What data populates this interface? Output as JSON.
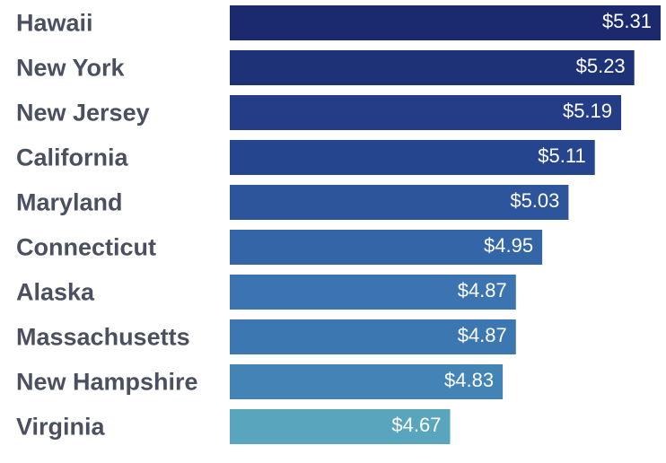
{
  "chart_data": {
    "type": "bar",
    "orientation": "horizontal",
    "categories": [
      "Hawaii",
      "New York",
      "New Jersey",
      "California",
      "Maryland",
      "Connecticut",
      "Alaska",
      "Massachusetts",
      "New Hampshire",
      "Virginia"
    ],
    "values": [
      5.31,
      5.23,
      5.19,
      5.11,
      5.03,
      4.95,
      4.87,
      4.87,
      4.83,
      4.67
    ],
    "value_labels": [
      "$5.31",
      "$5.23",
      "$5.19",
      "$5.11",
      "$5.03",
      "$4.95",
      "$4.87",
      "$4.87",
      "$4.83",
      "$4.67"
    ],
    "bar_colors": [
      "#1b2a6e",
      "#1e3278",
      "#243d86",
      "#26458f",
      "#2d559c",
      "#3465a7",
      "#3b74b0",
      "#3d77b1",
      "#4483b6",
      "#5aa5be"
    ],
    "xlim": [
      4.0,
      5.31
    ],
    "grid": false,
    "legend": "none",
    "title": "",
    "xlabel": "",
    "ylabel": ""
  }
}
